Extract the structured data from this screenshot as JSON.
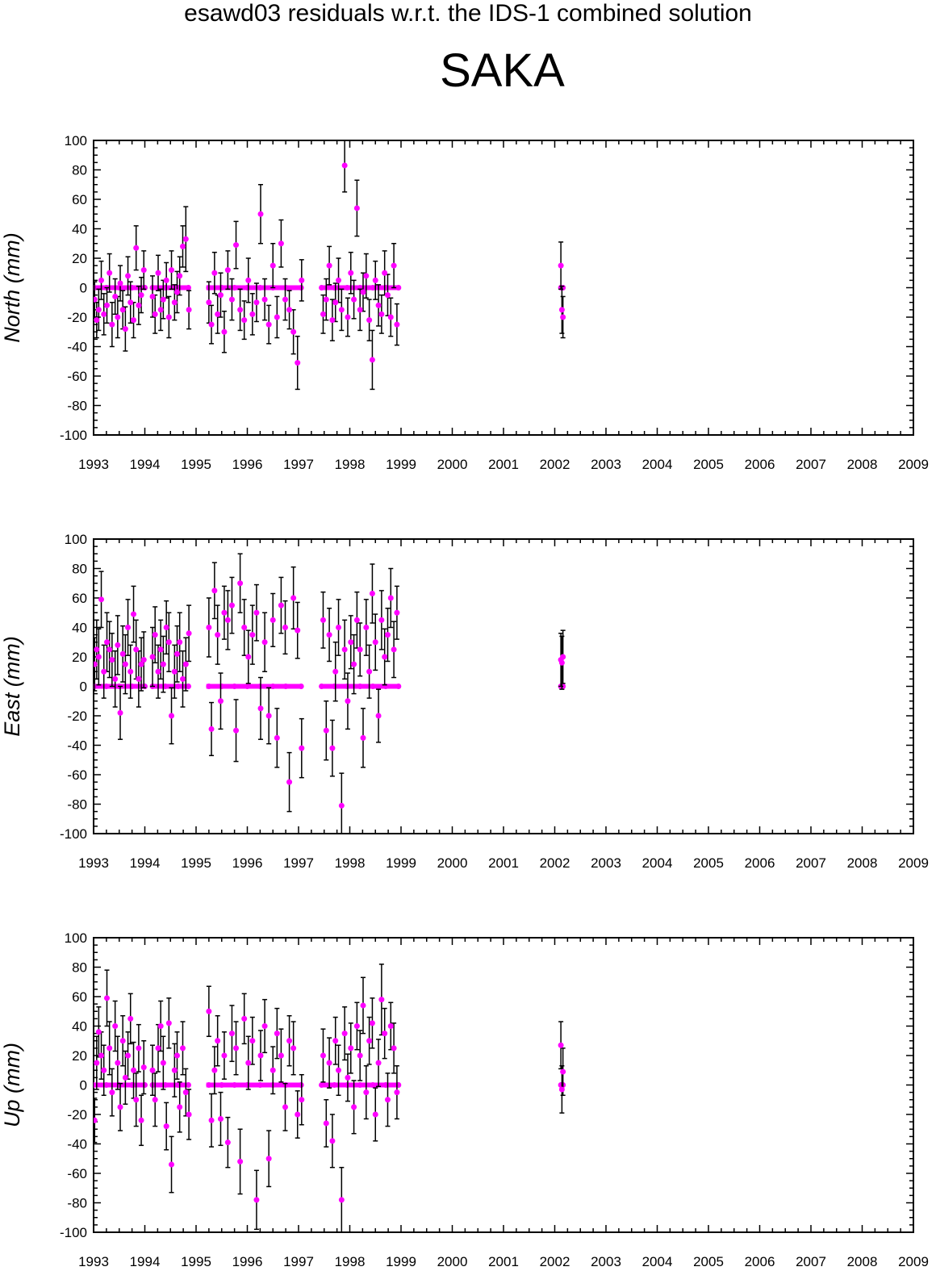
{
  "header": {
    "title": "esawd03 residuals w.r.t. the IDS-1 combined solution",
    "station": "SAKA"
  },
  "colors": {
    "point": "#ff00ff",
    "errorbar": "#000000",
    "axis": "#000000"
  },
  "chart_data": [
    {
      "type": "scatter",
      "ylabel": "North (mm)",
      "xlim": [
        1993,
        2009
      ],
      "ylim": [
        -100,
        100
      ],
      "x_ticks": [
        "1993",
        "1994",
        "1995",
        "1996",
        "1997",
        "1998",
        "1999",
        "2000",
        "2001",
        "2002",
        "2003",
        "2004",
        "2005",
        "2006",
        "2007",
        "2008",
        "2009"
      ],
      "y_ticks": [
        "-100",
        "-80",
        "-60",
        "-40",
        "-20",
        "0",
        "20",
        "40",
        "60",
        "80",
        "100"
      ],
      "grid": false,
      "series": [
        {
          "x": [
            1993.02,
            1993.06,
            1993.1,
            1993.15,
            1993.2,
            1993.26,
            1993.31,
            1993.36,
            1993.42,
            1993.47,
            1993.52,
            1993.57,
            1993.62,
            1993.67,
            1993.72,
            1993.78,
            1993.83,
            1993.88,
            1993.93,
            1993.98,
            1994.15,
            1994.2,
            1994.26,
            1994.31,
            1994.36,
            1994.42,
            1994.47,
            1994.52,
            1994.58,
            1994.63,
            1994.68,
            1994.74,
            1994.8,
            1994.86,
            1995.25,
            1995.3,
            1995.36,
            1995.42,
            1995.48,
            1995.55,
            1995.62,
            1995.7,
            1995.78,
            1995.86,
            1995.94,
            1996.02,
            1996.1,
            1996.18,
            1996.26,
            1996.34,
            1996.42,
            1996.5,
            1996.58,
            1996.66,
            1996.74,
            1996.82,
            1996.9,
            1996.98,
            1997.06,
            1997.48,
            1997.54,
            1997.6,
            1997.66,
            1997.72,
            1997.78,
            1997.84,
            1997.9,
            1997.96,
            1998.02,
            1998.08,
            1998.14,
            1998.2,
            1998.26,
            1998.32,
            1998.38,
            1998.44,
            1998.5,
            1998.56,
            1998.62,
            1998.68,
            1998.74,
            1998.8,
            1998.86,
            1998.92,
            2002.12,
            2002.14,
            2002.16
          ],
          "y": [
            -8,
            -22,
            -15,
            5,
            -18,
            -12,
            10,
            -25,
            -6,
            -20,
            3,
            -15,
            -28,
            8,
            -10,
            -22,
            27,
            -12,
            -5,
            12,
            -6,
            -18,
            10,
            -15,
            -8,
            5,
            -20,
            12,
            -10,
            -3,
            8,
            28,
            33,
            -15,
            -10,
            -25,
            10,
            -18,
            -5,
            -30,
            12,
            -8,
            29,
            -15,
            -22,
            5,
            -18,
            -10,
            50,
            -8,
            -25,
            15,
            -20,
            30,
            -8,
            -15,
            -30,
            -51,
            5,
            -18,
            -8,
            15,
            -22,
            -10,
            5,
            -15,
            83,
            -20,
            10,
            -8,
            54,
            -15,
            -3,
            8,
            -22,
            -49,
            5,
            -12,
            -18,
            10,
            -5,
            -20,
            15,
            -25,
            15,
            -15,
            -20
          ],
          "err": [
            12,
            12,
            14,
            13,
            14,
            12,
            13,
            15,
            12,
            14,
            12,
            13,
            15,
            13,
            14,
            12,
            15,
            13,
            12,
            13,
            14,
            13,
            12,
            14,
            13,
            12,
            14,
            13,
            12,
            14,
            13,
            14,
            22,
            13,
            14,
            13,
            14,
            13,
            15,
            14,
            13,
            14,
            16,
            14,
            13,
            15,
            14,
            13,
            20,
            14,
            13,
            15,
            14,
            16,
            14,
            13,
            15,
            18,
            14,
            13,
            14,
            13,
            14,
            13,
            15,
            14,
            18,
            13,
            14,
            13,
            19,
            14,
            13,
            15,
            14,
            20,
            13,
            14,
            13,
            15,
            14,
            13,
            15,
            14,
            16,
            16,
            14
          ]
        },
        {
          "x": [
            1993.0,
            1993.25,
            1993.5,
            1993.75,
            1994.0,
            1994.15,
            1994.4,
            1994.65,
            1994.85,
            1995.25,
            1995.5,
            1995.75,
            1996.0,
            1996.25,
            1996.5,
            1996.75,
            1997.05,
            1997.45,
            1997.7,
            1997.95,
            1998.2,
            1998.45,
            1998.7,
            1998.95,
            2002.12,
            2002.16
          ],
          "y": [
            0,
            0,
            0,
            0,
            0,
            0,
            0,
            0,
            0,
            0,
            0,
            0,
            0,
            0,
            0,
            0,
            0,
            0,
            0,
            0,
            0,
            0,
            0,
            0,
            0,
            0
          ]
        }
      ]
    },
    {
      "type": "scatter",
      "ylabel": "East (mm)",
      "xlim": [
        1993,
        2009
      ],
      "ylim": [
        -100,
        100
      ],
      "x_ticks": [
        "1993",
        "1994",
        "1995",
        "1996",
        "1997",
        "1998",
        "1999",
        "2000",
        "2001",
        "2002",
        "2003",
        "2004",
        "2005",
        "2006",
        "2007",
        "2008",
        "2009"
      ],
      "y_ticks": [
        "-100",
        "-80",
        "-60",
        "-40",
        "-20",
        "0",
        "20",
        "40",
        "60",
        "80",
        "100"
      ],
      "grid": false,
      "series": [
        {
          "x": [
            1993.02,
            1993.06,
            1993.1,
            1993.15,
            1993.2,
            1993.26,
            1993.31,
            1993.36,
            1993.42,
            1993.47,
            1993.52,
            1993.57,
            1993.62,
            1993.67,
            1993.72,
            1993.78,
            1993.83,
            1993.88,
            1993.93,
            1993.98,
            1994.15,
            1994.2,
            1994.26,
            1994.31,
            1994.36,
            1994.42,
            1994.47,
            1994.52,
            1994.58,
            1994.63,
            1994.68,
            1994.74,
            1994.8,
            1994.86,
            1995.25,
            1995.3,
            1995.36,
            1995.42,
            1995.48,
            1995.55,
            1995.62,
            1995.7,
            1995.78,
            1995.86,
            1995.94,
            1996.02,
            1996.1,
            1996.18,
            1996.26,
            1996.34,
            1996.42,
            1996.5,
            1996.58,
            1996.66,
            1996.74,
            1996.82,
            1996.9,
            1996.98,
            1997.06,
            1997.48,
            1997.54,
            1997.6,
            1997.66,
            1997.72,
            1997.78,
            1997.84,
            1997.9,
            1997.96,
            1998.02,
            1998.08,
            1998.14,
            1998.2,
            1998.26,
            1998.32,
            1998.38,
            1998.44,
            1998.5,
            1998.56,
            1998.62,
            1998.68,
            1998.74,
            1998.8,
            1998.86,
            1998.92,
            2002.12,
            2002.14,
            2002.16
          ],
          "y": [
            15,
            25,
            20,
            59,
            10,
            30,
            25,
            18,
            5,
            28,
            -18,
            22,
            15,
            40,
            10,
            49,
            25,
            5,
            15,
            18,
            20,
            35,
            10,
            25,
            15,
            40,
            30,
            -20,
            10,
            22,
            30,
            5,
            15,
            36,
            40,
            -29,
            65,
            35,
            -10,
            50,
            45,
            55,
            -30,
            70,
            40,
            20,
            35,
            50,
            -15,
            30,
            -20,
            45,
            -35,
            55,
            40,
            -65,
            60,
            38,
            -42,
            45,
            -30,
            35,
            -42,
            10,
            40,
            -81,
            25,
            -10,
            30,
            15,
            45,
            25,
            -35,
            40,
            10,
            63,
            30,
            -20,
            45,
            20,
            35,
            60,
            25,
            50,
            18,
            16,
            20
          ],
          "err": [
            18,
            20,
            19,
            19,
            18,
            20,
            19,
            18,
            19,
            20,
            18,
            19,
            20,
            19,
            18,
            19,
            20,
            19,
            18,
            19,
            20,
            19,
            18,
            20,
            19,
            18,
            20,
            19,
            18,
            19,
            20,
            19,
            18,
            19,
            20,
            18,
            19,
            20,
            19,
            18,
            20,
            19,
            21,
            20,
            19,
            18,
            20,
            19,
            21,
            20,
            19,
            18,
            20,
            19,
            18,
            20,
            21,
            19,
            20,
            19,
            20,
            18,
            19,
            20,
            19,
            22,
            20,
            19,
            18,
            20,
            19,
            18,
            20,
            19,
            18,
            20,
            19,
            18,
            20,
            19,
            18,
            20,
            19,
            18,
            18,
            18,
            18
          ]
        },
        {
          "x": [
            1993.0,
            1993.25,
            1993.5,
            1993.75,
            1994.0,
            1994.15,
            1994.4,
            1994.65,
            1994.85,
            1995.25,
            1995.5,
            1995.75,
            1996.0,
            1996.25,
            1996.5,
            1996.75,
            1997.05,
            1997.45,
            1997.7,
            1997.95,
            1998.2,
            1998.45,
            1998.7,
            1998.95,
            2002.12,
            2002.16
          ],
          "y": [
            0,
            0,
            0,
            0,
            0,
            0,
            0,
            0,
            0,
            0,
            0,
            0,
            0,
            0,
            0,
            0,
            0,
            0,
            0,
            0,
            0,
            0,
            0,
            0,
            0,
            0
          ]
        }
      ]
    },
    {
      "type": "scatter",
      "ylabel": "Up (mm)",
      "xlim": [
        1993,
        2009
      ],
      "ylim": [
        -100,
        100
      ],
      "x_ticks": [
        "1993",
        "1994",
        "1995",
        "1996",
        "1997",
        "1998",
        "1999",
        "2000",
        "2001",
        "2002",
        "2003",
        "2004",
        "2005",
        "2006",
        "2007",
        "2008",
        "2009"
      ],
      "y_ticks": [
        "-100",
        "-80",
        "-60",
        "-40",
        "-20",
        "0",
        "20",
        "40",
        "60",
        "80",
        "100"
      ],
      "grid": false,
      "series": [
        {
          "x": [
            1993.02,
            1993.06,
            1993.1,
            1993.15,
            1993.2,
            1993.26,
            1993.31,
            1993.36,
            1993.42,
            1993.47,
            1993.52,
            1993.57,
            1993.62,
            1993.67,
            1993.72,
            1993.78,
            1993.83,
            1993.88,
            1993.93,
            1993.98,
            1994.15,
            1994.2,
            1994.26,
            1994.31,
            1994.36,
            1994.42,
            1994.47,
            1994.52,
            1994.58,
            1994.63,
            1994.68,
            1994.74,
            1994.8,
            1994.86,
            1995.25,
            1995.3,
            1995.36,
            1995.42,
            1995.48,
            1995.55,
            1995.62,
            1995.7,
            1995.78,
            1995.86,
            1995.94,
            1996.02,
            1996.1,
            1996.18,
            1996.26,
            1996.34,
            1996.42,
            1996.5,
            1996.58,
            1996.66,
            1996.74,
            1996.82,
            1996.9,
            1996.98,
            1997.06,
            1997.48,
            1997.54,
            1997.6,
            1997.66,
            1997.72,
            1997.78,
            1997.84,
            1997.9,
            1997.96,
            1998.02,
            1998.08,
            1998.14,
            1998.2,
            1998.26,
            1998.32,
            1998.38,
            1998.44,
            1998.5,
            1998.56,
            1998.62,
            1998.68,
            1998.74,
            1998.8,
            1998.86,
            1998.92,
            2002.12,
            2002.14,
            2002.16
          ],
          "y": [
            -24,
            15,
            36,
            20,
            10,
            59,
            25,
            -5,
            40,
            15,
            -15,
            30,
            5,
            20,
            45,
            10,
            -10,
            25,
            -24,
            12,
            10,
            -10,
            25,
            40,
            15,
            -28,
            42,
            -54,
            10,
            20,
            -15,
            25,
            -5,
            -20,
            50,
            -24,
            10,
            30,
            -23,
            20,
            -39,
            35,
            25,
            -52,
            45,
            15,
            30,
            -78,
            20,
            40,
            -50,
            10,
            35,
            20,
            -15,
            30,
            25,
            -20,
            -10,
            20,
            -26,
            15,
            -38,
            30,
            10,
            -78,
            35,
            5,
            25,
            -15,
            40,
            20,
            54,
            -5,
            30,
            42,
            -20,
            15,
            58,
            35,
            -10,
            40,
            25,
            -5,
            27,
            -3,
            9
          ],
          "err": [
            15,
            18,
            17,
            16,
            17,
            19,
            18,
            16,
            17,
            18,
            16,
            17,
            18,
            16,
            17,
            19,
            18,
            16,
            17,
            18,
            17,
            18,
            16,
            17,
            18,
            16,
            17,
            19,
            18,
            16,
            17,
            18,
            16,
            17,
            17,
            18,
            16,
            17,
            18,
            16,
            17,
            19,
            18,
            22,
            17,
            18,
            16,
            20,
            17,
            18,
            19,
            16,
            17,
            18,
            16,
            17,
            18,
            16,
            17,
            18,
            16,
            17,
            18,
            16,
            17,
            22,
            18,
            16,
            17,
            18,
            16,
            17,
            19,
            18,
            16,
            17,
            18,
            16,
            24,
            17,
            18,
            16,
            17,
            18,
            16,
            16,
            16
          ]
        },
        {
          "x": [
            1993.0,
            1993.25,
            1993.5,
            1993.75,
            1994.0,
            1994.15,
            1994.4,
            1994.65,
            1994.85,
            1995.25,
            1995.5,
            1995.75,
            1996.0,
            1996.25,
            1996.5,
            1996.75,
            1997.05,
            1997.45,
            1997.7,
            1997.95,
            1998.2,
            1998.45,
            1998.7,
            1998.95,
            2002.12,
            2002.16
          ],
          "y": [
            0,
            0,
            0,
            0,
            0,
            0,
            0,
            0,
            0,
            0,
            0,
            0,
            0,
            0,
            0,
            0,
            0,
            0,
            0,
            0,
            0,
            0,
            0,
            0,
            0,
            0
          ]
        }
      ]
    }
  ]
}
